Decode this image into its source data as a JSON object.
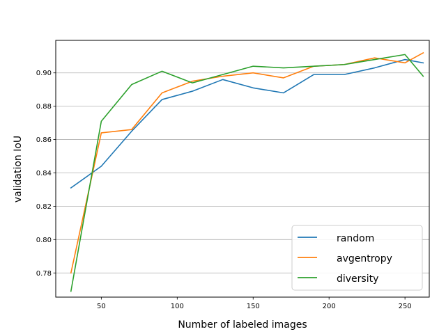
{
  "chart_data": {
    "type": "line",
    "xlabel": "Number of labeled images",
    "ylabel": "validation IoU",
    "xlim": [
      20,
      266
    ],
    "ylim": [
      0.7655,
      0.9195
    ],
    "xticks": [
      50,
      100,
      150,
      200,
      250
    ],
    "xtick_labels": [
      "50",
      "100",
      "150",
      "200",
      "250"
    ],
    "yticks": [
      0.78,
      0.8,
      0.82,
      0.84,
      0.86,
      0.88,
      0.9
    ],
    "ytick_labels": [
      "0.78",
      "0.80",
      "0.82",
      "0.84",
      "0.86",
      "0.88",
      "0.90"
    ],
    "grid": "y-major",
    "legend_position": "lower-right",
    "series": [
      {
        "name": "random",
        "color": "#1f77b4",
        "x": [
          30,
          50,
          70,
          90,
          110,
          130,
          150,
          170,
          190,
          210,
          230,
          250,
          262
        ],
        "y": [
          0.831,
          0.844,
          0.865,
          0.884,
          0.889,
          0.896,
          0.891,
          0.888,
          0.899,
          0.899,
          0.903,
          0.908,
          0.906
        ]
      },
      {
        "name": "avgentropy",
        "color": "#ff7f0e",
        "x": [
          30,
          50,
          70,
          90,
          110,
          130,
          150,
          170,
          190,
          210,
          230,
          250,
          262
        ],
        "y": [
          0.78,
          0.864,
          0.866,
          0.888,
          0.895,
          0.898,
          0.9,
          0.897,
          0.904,
          0.905,
          0.909,
          0.906,
          0.912
        ]
      },
      {
        "name": "diversity",
        "color": "#2ca02c",
        "x": [
          30,
          50,
          70,
          90,
          110,
          130,
          150,
          170,
          190,
          210,
          230,
          250,
          262
        ],
        "y": [
          0.769,
          0.871,
          0.893,
          0.901,
          0.894,
          0.899,
          0.904,
          0.903,
          0.904,
          0.905,
          0.908,
          0.911,
          0.898
        ]
      }
    ]
  }
}
